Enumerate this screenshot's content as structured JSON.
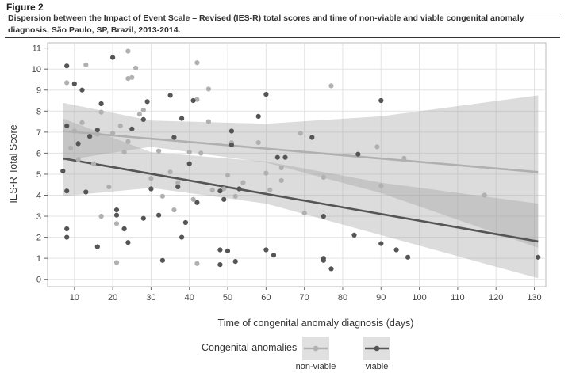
{
  "figure_label": "Figure 2",
  "caption": "Dispersion between the Impact of Event Scale – Revised (IES-R) total scores and time of non-viable and viable congenital anomaly diagnosis, São Paulo, SP, Brazil, 2013-2014.",
  "chart_data": {
    "type": "scatter",
    "xlabel": "Time of congenital anomaly diagnosis (days)",
    "ylabel": "IES-R  Total Score",
    "xlim": [
      3,
      133
    ],
    "ylim": [
      -0.35,
      11.25
    ],
    "xticks": [
      10,
      20,
      30,
      40,
      50,
      60,
      70,
      80,
      90,
      100,
      110,
      120,
      130
    ],
    "yticks": [
      0,
      1,
      2,
      3,
      4,
      5,
      6,
      7,
      8,
      9,
      10,
      11
    ],
    "grid": true,
    "legend": {
      "title": "Congenital anomalies",
      "placement": "bottom",
      "labels": [
        "non-viable",
        "viable"
      ]
    },
    "series": [
      {
        "name": "non-viable",
        "color": "#b0b0b0",
        "fit_line": {
          "x": [
            7,
            131
          ],
          "y": [
            7.05,
            5.1
          ]
        },
        "ci_band": {
          "x": [
            7,
            30,
            60,
            90,
            131
          ],
          "upper": [
            8.4,
            7.55,
            7.4,
            7.75,
            8.75
          ],
          "lower": [
            5.65,
            6.3,
            5.55,
            4.1,
            1.5
          ]
        },
        "points": [
          [
            8,
            9.35
          ],
          [
            9,
            6.25
          ],
          [
            10,
            7.05
          ],
          [
            11,
            5.7
          ],
          [
            12,
            7.45
          ],
          [
            13,
            10.2
          ],
          [
            14,
            6.8
          ],
          [
            15,
            5.5
          ],
          [
            16,
            6.9
          ],
          [
            17,
            7.95
          ],
          [
            17,
            3.0
          ],
          [
            19,
            4.4
          ],
          [
            20,
            6.95
          ],
          [
            21,
            0.8
          ],
          [
            21,
            2.65
          ],
          [
            22,
            7.3
          ],
          [
            23,
            6.05
          ],
          [
            24,
            9.55
          ],
          [
            24,
            10.85
          ],
          [
            24,
            6.55
          ],
          [
            25,
            9.6
          ],
          [
            26,
            10.05
          ],
          [
            27,
            7.85
          ],
          [
            28,
            8.05
          ],
          [
            30,
            4.8
          ],
          [
            32,
            6.1
          ],
          [
            33,
            3.95
          ],
          [
            35,
            5.1
          ],
          [
            36,
            3.3
          ],
          [
            37,
            4.6
          ],
          [
            40,
            6.05
          ],
          [
            41,
            3.8
          ],
          [
            42,
            8.55
          ],
          [
            42,
            10.3
          ],
          [
            42,
            0.75
          ],
          [
            43,
            6.0
          ],
          [
            45,
            9.05
          ],
          [
            45,
            7.5
          ],
          [
            46,
            4.25
          ],
          [
            49,
            4.3
          ],
          [
            50,
            4.95
          ],
          [
            51,
            6.5
          ],
          [
            52,
            3.95
          ],
          [
            54,
            4.6
          ],
          [
            58,
            6.5
          ],
          [
            60,
            5.05
          ],
          [
            61,
            4.25
          ],
          [
            64,
            4.7
          ],
          [
            64,
            5.3
          ],
          [
            69,
            6.95
          ],
          [
            70,
            3.15
          ],
          [
            75,
            4.85
          ],
          [
            77,
            9.2
          ],
          [
            89,
            6.3
          ],
          [
            90,
            4.45
          ],
          [
            96,
            5.75
          ],
          [
            117,
            4.0
          ]
        ]
      },
      {
        "name": "viable",
        "color": "#555555",
        "fit_line": {
          "x": [
            7,
            131
          ],
          "y": [
            5.75,
            1.8
          ]
        },
        "ci_band": {
          "x": [
            7,
            30,
            60,
            90,
            131
          ],
          "upper": [
            7.65,
            6.05,
            5.6,
            4.6,
            3.6
          ],
          "lower": [
            3.95,
            4.35,
            3.6,
            2.1,
            0.05
          ]
        },
        "points": [
          [
            7,
            5.15
          ],
          [
            8,
            7.3
          ],
          [
            8,
            10.15
          ],
          [
            8,
            4.2
          ],
          [
            8,
            2.4
          ],
          [
            8,
            2.0
          ],
          [
            10,
            9.3
          ],
          [
            11,
            6.45
          ],
          [
            12,
            9.0
          ],
          [
            13,
            4.15
          ],
          [
            14,
            6.8
          ],
          [
            16,
            7.1
          ],
          [
            16,
            1.55
          ],
          [
            17,
            8.35
          ],
          [
            20,
            10.55
          ],
          [
            21,
            3.3
          ],
          [
            21,
            3.05
          ],
          [
            23,
            2.4
          ],
          [
            24,
            1.75
          ],
          [
            25,
            7.15
          ],
          [
            28,
            7.6
          ],
          [
            28,
            2.9
          ],
          [
            29,
            8.45
          ],
          [
            30,
            4.3
          ],
          [
            32,
            3.05
          ],
          [
            33,
            0.9
          ],
          [
            35,
            8.75
          ],
          [
            36,
            6.75
          ],
          [
            37,
            4.4
          ],
          [
            38,
            7.65
          ],
          [
            38,
            2.0
          ],
          [
            39,
            2.7
          ],
          [
            40,
            5.5
          ],
          [
            41,
            8.5
          ],
          [
            42,
            3.65
          ],
          [
            48,
            4.2
          ],
          [
            48,
            1.4
          ],
          [
            48,
            0.7
          ],
          [
            49,
            3.8
          ],
          [
            50,
            1.35
          ],
          [
            51,
            7.05
          ],
          [
            51,
            6.4
          ],
          [
            52,
            0.85
          ],
          [
            53,
            4.3
          ],
          [
            58,
            7.75
          ],
          [
            60,
            8.8
          ],
          [
            60,
            1.4
          ],
          [
            62,
            1.15
          ],
          [
            63,
            5.8
          ],
          [
            65,
            5.8
          ],
          [
            72,
            6.75
          ],
          [
            75,
            1.0
          ],
          [
            75,
            0.9
          ],
          [
            75,
            3.0
          ],
          [
            77,
            0.5
          ],
          [
            83,
            2.1
          ],
          [
            84,
            5.95
          ],
          [
            90,
            8.5
          ],
          [
            90,
            1.7
          ],
          [
            94,
            1.4
          ],
          [
            97,
            1.05
          ],
          [
            131,
            1.05
          ]
        ]
      }
    ]
  }
}
